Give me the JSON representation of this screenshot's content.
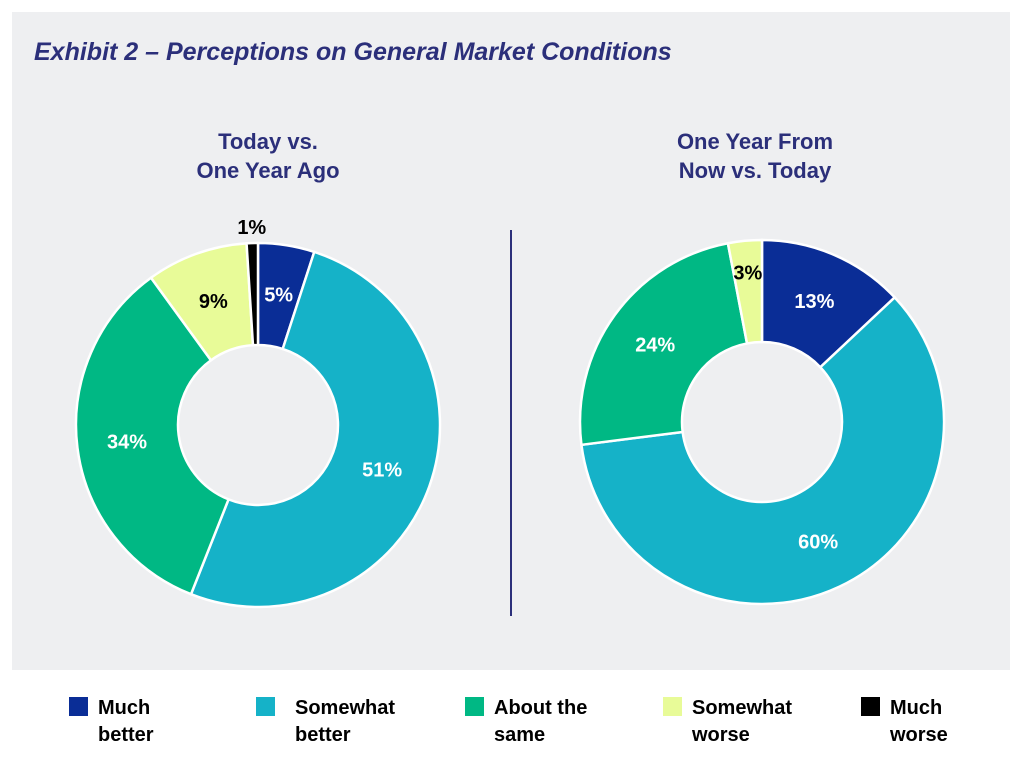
{
  "title": "Exhibit 2 – Perceptions on General Market Conditions",
  "legend": [
    {
      "label": "Much\nbetter",
      "color": "#0a2d96"
    },
    {
      "label": "Somewhat\nbetter",
      "color": "#15b2c8"
    },
    {
      "label": "About the\nsame",
      "color": "#00b884"
    },
    {
      "label": "Somewhat\nworse",
      "color": "#e8fb98"
    },
    {
      "label": "Much\nworse",
      "color": "#000000"
    }
  ],
  "chart_data": [
    {
      "type": "pie",
      "donut": true,
      "title": "Today vs.\nOne Year Ago",
      "categories": [
        "Much better",
        "Somewhat better",
        "About the same",
        "Somewhat worse",
        "Much worse"
      ],
      "values": [
        5,
        51,
        34,
        9,
        1
      ],
      "labels": [
        "5%",
        "51%",
        "34%",
        "9%",
        "1%"
      ]
    },
    {
      "type": "pie",
      "donut": true,
      "title": "One Year From\nNow vs. Today",
      "categories": [
        "Much better",
        "Somewhat better",
        "About the same",
        "Somewhat worse",
        "Much worse"
      ],
      "values": [
        13,
        60,
        24,
        3,
        0
      ],
      "labels": [
        "13%",
        "60%",
        "24%",
        "3%",
        ""
      ]
    }
  ]
}
